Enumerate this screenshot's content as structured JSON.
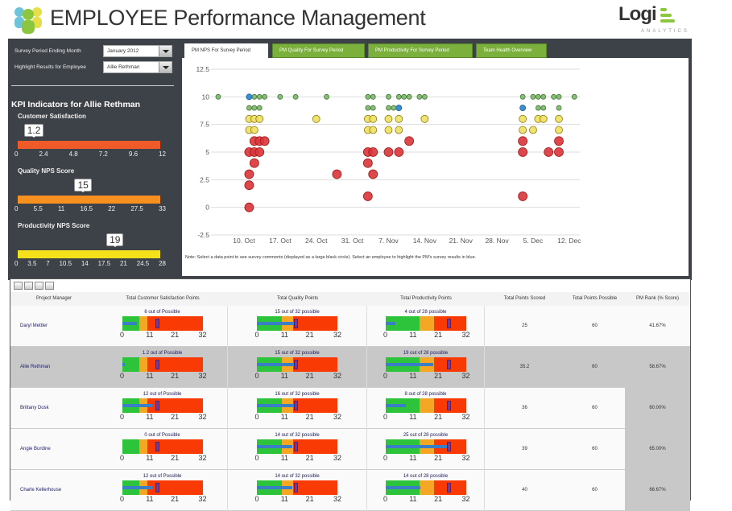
{
  "header": {
    "title": "EMPLOYEE Performance Management",
    "logo_text": "Logi",
    "logo_sub": "ANALYTICS"
  },
  "filters": {
    "period_label": "Survey Period Ending Month",
    "period_value": "January 2012",
    "employee_label": "Highlight Results for Employee",
    "employee_value": "Allie Rethman"
  },
  "kpi": {
    "title": "KPI Indicators for Allie Rethman",
    "gauges": [
      {
        "title": "Customer Satisfaction",
        "value": 1.2,
        "value_label": "1.2",
        "max": 12,
        "ticks": [
          "0",
          "2.4",
          "4.8",
          "7.2",
          "9.6",
          "12"
        ],
        "color": "#f05a28"
      },
      {
        "title": "Quality NPS Score",
        "value": 15,
        "value_label": "15",
        "max": 33,
        "ticks": [
          "0",
          "5.5",
          "11",
          "16.5",
          "22",
          "27.5",
          "33"
        ],
        "color": "#f7901e"
      },
      {
        "title": "Productivity NPS Score",
        "value": 19,
        "value_label": "19",
        "max": 28,
        "ticks": [
          "0",
          "3.5",
          "7",
          "10.5",
          "14",
          "17.5",
          "21",
          "24.5",
          "28"
        ],
        "color": "#f5e11b"
      }
    ]
  },
  "tabs": [
    {
      "label": "PM NPS For Survey Period",
      "active": true
    },
    {
      "label": "PM Quality For Survey Period"
    },
    {
      "label": "PM Productivity For Survey Period"
    },
    {
      "label": "Team Health Overview"
    }
  ],
  "chart_data": {
    "type": "scatter",
    "ylim": [
      -2.5,
      12.5
    ],
    "yticks": [
      "12.5",
      "10",
      "7.5",
      "5",
      "2.5",
      "0",
      "-2.5"
    ],
    "xticks": [
      "10. Oct",
      "17. Oct",
      "24. Oct",
      "31. Oct",
      "7. Nov",
      "14. Nov",
      "21. Nov",
      "28. Nov",
      "5. Dec",
      "12. Dec"
    ],
    "xlim": [
      "5 Oct",
      "13 Dec"
    ],
    "grid": true,
    "colors": {
      "promoter": "#7cb66a",
      "passive": "#f0e060",
      "detractor": "#d9343a",
      "highlight": "#3a8fd0"
    },
    "points": [
      {
        "y": 10,
        "dates": [
          "5 Oct",
          "12 Oct",
          "13 Oct",
          "14 Oct",
          "17 Oct",
          "20 Oct",
          "26 Oct",
          "3 Nov",
          "4 Nov",
          "7 Nov",
          "9 Nov",
          "10 Nov",
          "11 Nov",
          "13 Nov",
          "14 Nov",
          "3 Dec",
          "5 Dec",
          "6 Dec",
          "7 Dec",
          "9 Dec",
          "10 Dec",
          "13 Dec"
        ],
        "highlight": [
          "11 Oct"
        ]
      },
      {
        "y": 9,
        "dates": [
          "11 Oct",
          "12 Oct",
          "13 Oct",
          "3 Nov",
          "4 Nov",
          "7 Nov",
          "8 Nov",
          "6 Dec",
          "7 Dec",
          "10 Dec"
        ],
        "highlight": [
          "9 Nov",
          "3 Dec"
        ]
      },
      {
        "y": 8,
        "dates": [
          "11 Oct",
          "12 Oct",
          "13 Oct",
          "24 Oct",
          "3 Nov",
          "4 Nov",
          "7 Nov",
          "9 Nov",
          "14 Nov",
          "3 Dec",
          "6 Dec",
          "7 Dec",
          "10 Dec"
        ],
        "highlight": []
      },
      {
        "y": 7,
        "dates": [
          "11 Oct",
          "12 Oct",
          "3 Nov",
          "4 Nov",
          "7 Nov",
          "9 Nov",
          "3 Dec",
          "5 Dec",
          "10 Dec"
        ],
        "highlight": []
      },
      {
        "y": 6,
        "dates": [
          "12 Oct",
          "13 Oct",
          "14 Oct",
          "11 Nov",
          "3 Dec",
          "10 Dec"
        ],
        "highlight": []
      },
      {
        "y": 5,
        "dates": [
          "11 Oct",
          "12 Oct",
          "13 Oct",
          "3 Nov",
          "4 Nov",
          "7 Nov",
          "9 Nov",
          "3 Dec",
          "8 Dec",
          "10 Dec"
        ],
        "highlight": []
      },
      {
        "y": 4,
        "dates": [
          "12 Oct",
          "3 Nov"
        ],
        "highlight": []
      },
      {
        "y": 3,
        "dates": [
          "11 Oct",
          "28 Oct",
          "4 Nov"
        ],
        "highlight": []
      },
      {
        "y": 2,
        "dates": [
          "11 Oct"
        ],
        "highlight": []
      },
      {
        "y": 1,
        "dates": [
          "3 Nov",
          "3 Dec"
        ],
        "highlight": []
      },
      {
        "y": 0,
        "dates": [
          "11 Oct"
        ],
        "highlight": []
      }
    ]
  },
  "chart_note": "Note: Select a data point to see survey comments (displayed as a large black circle). Select an employee to highlight the PM's survey results in blue.",
  "table": {
    "headers": [
      "Project Manager",
      "Total Customer Satisfaction Points",
      "Total Quality Points",
      "Total Productivity Points",
      "Total Points Scored",
      "Total Points Possible",
      "PM Rank (% Score)"
    ],
    "axis_ticks": [
      "0",
      "11",
      "21",
      "32"
    ],
    "bullet_bands": [
      {
        "green": 7,
        "orange": 10,
        "target": 14
      },
      {
        "green": 10,
        "orange": 14.5,
        "target": 15.5
      },
      {
        "green": 13.5,
        "orange": 19.5,
        "target": 25
      }
    ],
    "band_colors": {
      "green": "#2dc33a",
      "orange": "#f5a623",
      "red": "#fa3a05",
      "measure": "#3a7ec8",
      "target": "#6b3fa0"
    },
    "rows": [
      {
        "name": "Daryl Mettler",
        "cust": {
          "label": "6 out of Possible",
          "value": 6
        },
        "qual": {
          "label": "15 out of 32 possible",
          "value": 15
        },
        "prod": {
          "label": "4 out of 28 possible",
          "value": 4
        },
        "scored": "25",
        "possible": "60",
        "rank": "41.67%"
      },
      {
        "name": "Allie Rethman",
        "highlight": true,
        "cust": {
          "label": "1.2 out of Possible",
          "value": 1.2
        },
        "qual": {
          "label": "15 out of 32 possible",
          "value": 15
        },
        "prod": {
          "label": "19 out of 28 possible",
          "value": 19
        },
        "scored": "35.2",
        "possible": "60",
        "rank": "58.67%"
      },
      {
        "name": "Brittany Dosk",
        "cust": {
          "label": "12 out of Possible",
          "value": 12
        },
        "qual": {
          "label": "16 out of 32 possible",
          "value": 16
        },
        "prod": {
          "label": "8 out of 28 possible",
          "value": 8
        },
        "scored": "36",
        "possible": "60",
        "rank": "60.00%"
      },
      {
        "name": "Angie Burdine",
        "cust": {
          "label": "0 out of Possible",
          "value": 0
        },
        "qual": {
          "label": "14 out of 32 possible",
          "value": 14
        },
        "prod": {
          "label": "25 out of 28 possible",
          "value": 25
        },
        "scored": "39",
        "possible": "60",
        "rank": "65.00%"
      },
      {
        "name": "Charle Kellerhouse",
        "cust": {
          "label": "12 out of Possible",
          "value": 12
        },
        "qual": {
          "label": "14 out of 32 possible",
          "value": 14
        },
        "prod": {
          "label": "14 out of 28 possible",
          "value": 14
        },
        "scored": "40",
        "possible": "60",
        "rank": "66.67%"
      }
    ]
  }
}
